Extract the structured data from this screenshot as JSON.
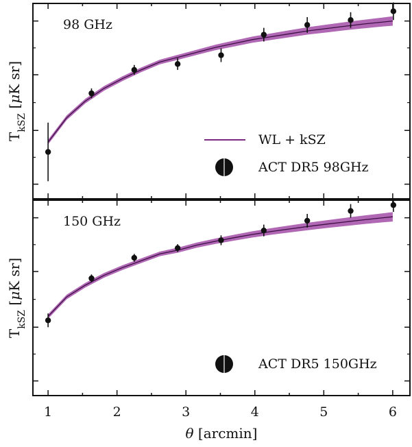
{
  "chart_data": [
    {
      "type": "line",
      "title": "98 GHz",
      "xlabel": "",
      "ylabel": "T_kSZ [μK sr]",
      "ylabel_parts": {
        "base": "T",
        "sub": "kSZ",
        "unit_open": " [",
        "mu": "μ",
        "unit_rest": "K sr]"
      },
      "xlim": [
        0.78,
        6.25
      ],
      "ylim": [
        0,
        1
      ],
      "y_ticks_labeled": false,
      "model": {
        "name": "WL + kSZ",
        "color": "#7b2a80",
        "band_color": "#a24da8",
        "x": [
          1.0,
          1.27,
          1.54,
          1.81,
          2.08,
          2.35,
          2.62,
          2.89,
          3.16,
          3.43,
          3.7,
          3.97,
          4.24,
          4.51,
          4.78,
          5.05,
          5.32,
          5.59,
          5.86,
          6.0
        ],
        "y": [
          0.29,
          0.415,
          0.5,
          0.565,
          0.615,
          0.66,
          0.7,
          0.725,
          0.75,
          0.775,
          0.795,
          0.815,
          0.83,
          0.845,
          0.86,
          0.872,
          0.884,
          0.895,
          0.905,
          0.91
        ],
        "band_halfwidth": [
          0.012,
          0.012,
          0.012,
          0.012,
          0.012,
          0.012,
          0.012,
          0.013,
          0.013,
          0.014,
          0.015,
          0.016,
          0.017,
          0.018,
          0.019,
          0.02,
          0.021,
          0.022,
          0.023,
          0.024
        ]
      },
      "data": {
        "name": "ACT DR5 98GHz",
        "x": [
          1.0,
          1.63,
          2.25,
          2.88,
          3.51,
          4.13,
          4.76,
          5.39,
          6.01
        ],
        "y": [
          0.24,
          0.54,
          0.66,
          0.69,
          0.735,
          0.84,
          0.89,
          0.915,
          0.96
        ],
        "yerr": [
          0.15,
          0.025,
          0.025,
          0.03,
          0.035,
          0.035,
          0.04,
          0.04,
          0.045
        ]
      },
      "legend": [
        {
          "label": "WL + kSZ",
          "kind": "line"
        },
        {
          "label": "ACT DR5 98GHz",
          "kind": "marker"
        }
      ],
      "legend_placement": "bottom-right",
      "grid": false
    },
    {
      "type": "line",
      "title": "150 GHz",
      "xlabel": "θ [arcmin]",
      "xlabel_parts": {
        "theta": "θ",
        "rest": " [arcmin]"
      },
      "ylabel": "T_kSZ [μK sr]",
      "ylabel_parts": {
        "base": "T",
        "sub": "kSZ",
        "unit_open": " [",
        "mu": "μ",
        "unit_rest": "K sr]"
      },
      "xlim": [
        0.78,
        6.25
      ],
      "ylim": [
        0,
        1
      ],
      "y_ticks_labeled": false,
      "x_ticks": [
        1,
        2,
        3,
        4,
        5,
        6
      ],
      "model": {
        "name": "WL + kSZ",
        "color": "#7b2a80",
        "band_color": "#a24da8",
        "x": [
          1.0,
          1.27,
          1.54,
          1.81,
          2.08,
          2.35,
          2.62,
          2.89,
          3.16,
          3.43,
          3.7,
          3.97,
          4.24,
          4.51,
          4.78,
          5.05,
          5.32,
          5.59,
          5.86,
          6.0
        ],
        "y": [
          0.405,
          0.505,
          0.565,
          0.615,
          0.655,
          0.69,
          0.725,
          0.745,
          0.77,
          0.79,
          0.808,
          0.825,
          0.84,
          0.853,
          0.866,
          0.878,
          0.889,
          0.9,
          0.91,
          0.915
        ],
        "band_halfwidth": [
          0.012,
          0.012,
          0.012,
          0.012,
          0.012,
          0.012,
          0.012,
          0.013,
          0.013,
          0.014,
          0.015,
          0.016,
          0.017,
          0.018,
          0.019,
          0.02,
          0.021,
          0.022,
          0.023,
          0.024
        ]
      },
      "data": {
        "name": "ACT DR5 150GHz",
        "x": [
          1.0,
          1.63,
          2.25,
          2.88,
          3.51,
          4.13,
          4.76,
          5.39,
          6.01
        ],
        "y": [
          0.385,
          0.6,
          0.705,
          0.755,
          0.795,
          0.845,
          0.895,
          0.945,
          0.975
        ],
        "yerr": [
          0.035,
          0.02,
          0.02,
          0.02,
          0.025,
          0.03,
          0.035,
          0.035,
          0.035
        ]
      },
      "legend": [
        {
          "label": "ACT DR5 150GHz",
          "kind": "marker"
        }
      ],
      "legend_placement": "bottom-right",
      "grid": false
    }
  ]
}
